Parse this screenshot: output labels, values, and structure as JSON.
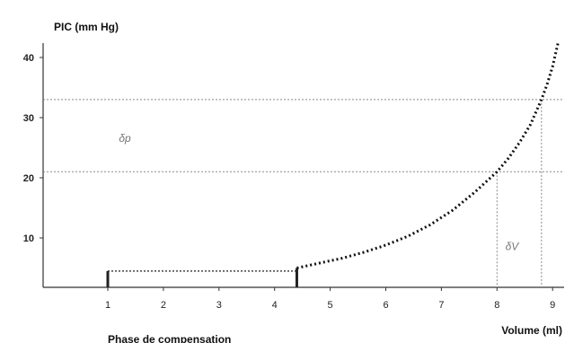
{
  "chart_data": {
    "type": "line",
    "ylabel": "PIC (mm Hg)",
    "xlabel": "Volume (ml)",
    "region_label": "Phase de compensation",
    "xlim": [
      0,
      9.2
    ],
    "ylim": [
      0,
      43
    ],
    "xticks": [
      1,
      2,
      3,
      4,
      5,
      6,
      7,
      8,
      9
    ],
    "yticks": [
      10,
      20,
      30,
      40
    ],
    "compensation_level": {
      "x": [
        1,
        4.4
      ],
      "y": 4.5
    },
    "compensation_markers": [
      {
        "x": 1,
        "y": 4.5
      },
      {
        "x": 4.4,
        "y": 5
      }
    ],
    "series": [
      {
        "x": [
          4.4,
          4.8,
          5.2,
          5.6,
          6.0,
          6.4,
          6.8,
          7.2,
          7.6,
          8.0,
          8.2,
          8.4,
          8.6,
          8.8,
          8.9,
          9.0,
          9.1
        ],
        "y": [
          5,
          5.8,
          6.6,
          7.6,
          8.8,
          10.3,
          12.2,
          14.6,
          17.6,
          21,
          23.2,
          25.8,
          28.8,
          33,
          35.5,
          38.5,
          42.5
        ]
      }
    ],
    "reference_lines": [
      {
        "y": 33,
        "x_end": 8.8
      },
      {
        "y": 21,
        "x_end": 8.0
      }
    ],
    "annotations": [
      {
        "text": "δp",
        "x": 1.2,
        "y": 26
      },
      {
        "text": "δV",
        "x": 8.15,
        "y": 8
      }
    ],
    "grid": false,
    "legend": false
  }
}
